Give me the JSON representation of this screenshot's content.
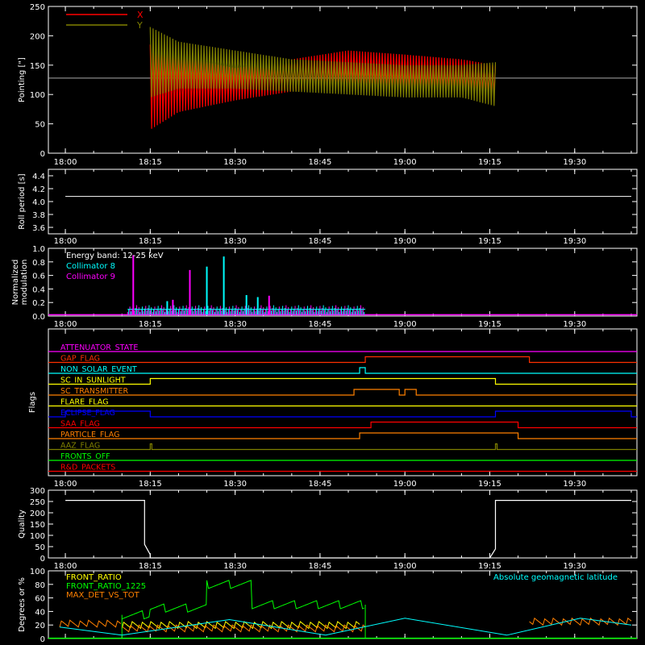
{
  "time_ticks": [
    "18:00",
    "18:15",
    "18:30",
    "18:45",
    "19:00",
    "19:15",
    "19:30"
  ],
  "colors": {
    "x_red": "#ff0000",
    "y_olive": "#808000",
    "cyan": "#00ffff",
    "magenta": "#ff00ff",
    "white": "#ffffff",
    "green": "#00ff00",
    "orange": "#ff8000",
    "yellow": "#ffff00",
    "blue": "#0000ff"
  },
  "chart_data": [
    {
      "type": "line",
      "id": "pointing",
      "ylabel": "Pointing [\"]",
      "ylim": [
        0,
        250
      ],
      "yticks": [
        0,
        50,
        100,
        150,
        200,
        250
      ],
      "xlim": [
        "18:00",
        "19:40"
      ],
      "reference_line": 128,
      "legend": [
        "X",
        "Y"
      ],
      "series": [
        {
          "name": "X",
          "color": "#ff0000",
          "start": "18:15",
          "end": "19:16",
          "envelope_time": [
            "18:15",
            "18:20",
            "18:30",
            "18:40",
            "18:50",
            "19:00",
            "19:10",
            "19:16"
          ],
          "upper": [
            185,
            165,
            145,
            160,
            175,
            168,
            160,
            150
          ],
          "lower": [
            40,
            70,
            90,
            105,
            115,
            110,
            105,
            100
          ]
        },
        {
          "name": "Y",
          "color": "#808000",
          "start": "18:15",
          "end": "19:16",
          "envelope_time": [
            "18:15",
            "18:20",
            "18:30",
            "18:40",
            "18:50",
            "19:00",
            "19:10",
            "19:16"
          ],
          "upper": [
            215,
            190,
            175,
            160,
            155,
            150,
            150,
            155
          ],
          "lower": [
            95,
            110,
            110,
            105,
            100,
            95,
            95,
            80
          ]
        }
      ]
    },
    {
      "type": "line",
      "id": "roll",
      "ylabel": "Roll period [s]",
      "ylim": [
        3.5,
        4.5
      ],
      "yticks": [
        3.6,
        3.8,
        4.0,
        4.2,
        4.4
      ],
      "series": [
        {
          "name": "",
          "color": "#ffffff",
          "value": 4.08,
          "start": "18:00",
          "end": "19:40"
        }
      ]
    },
    {
      "type": "line",
      "id": "modulation",
      "ylabel": "Normalized modulation",
      "ylim": [
        0,
        1.0
      ],
      "yticks": [
        0.0,
        0.2,
        0.4,
        0.6,
        0.8,
        1.0
      ],
      "annotation": "Energy band: 12-25 keV",
      "legend": [
        "Collimator 8",
        "Collimator 9"
      ],
      "range": [
        "18:11",
        "18:53"
      ],
      "spikes": [
        {
          "t": "18:12",
          "v": 0.9,
          "c": 9
        },
        {
          "t": "18:22",
          "v": 0.68,
          "c": 9
        },
        {
          "t": "18:25",
          "v": 0.73,
          "c": 8
        },
        {
          "t": "18:28",
          "v": 0.88,
          "c": 8
        },
        {
          "t": "18:19",
          "v": 0.24,
          "c": 9
        },
        {
          "t": "18:32",
          "v": 0.31,
          "c": 8
        },
        {
          "t": "18:34",
          "v": 0.28,
          "c": 8
        },
        {
          "t": "18:36",
          "v": 0.3,
          "c": 9
        },
        {
          "t": "18:18",
          "v": 0.22,
          "c": 8
        }
      ]
    },
    {
      "type": "table",
      "id": "flags",
      "ylabel": "Flags",
      "rows": [
        {
          "label": "ATTENUATOR_STATE",
          "color": "#ff00ff",
          "on": []
        },
        {
          "label": "GAP_FLAG",
          "color": "#ff3000",
          "on": [
            [
              "18:53",
              "19:22"
            ]
          ]
        },
        {
          "label": "NON_SOLAR_EVENT",
          "color": "#00ffff",
          "on": [
            [
              "18:52",
              "18:53"
            ]
          ]
        },
        {
          "label": "SC_IN_SUNLIGHT",
          "color": "#ffff00",
          "on": [
            [
              "18:15",
              "19:16"
            ]
          ]
        },
        {
          "label": "SC_TRANSMITTER",
          "color": "#ff8000",
          "on": [
            [
              "18:51",
              "18:59"
            ],
            [
              "19:00",
              "19:02"
            ]
          ]
        },
        {
          "label": "FLARE_FLAG",
          "color": "#ffff00",
          "on": []
        },
        {
          "label": "ECLIPSE_FLAG",
          "color": "#0000ff",
          "on": [
            [
              "18:00",
              "18:15"
            ],
            [
              "19:16",
              "19:40"
            ]
          ]
        },
        {
          "label": "SAA_FLAG",
          "color": "#ff0000",
          "on": [
            [
              "18:54",
              "19:20"
            ]
          ]
        },
        {
          "label": "PARTICLE_FLAG",
          "color": "#ff8000",
          "on": [
            [
              "18:52",
              "19:20"
            ]
          ]
        },
        {
          "label": "AAZ_FLAG",
          "color": "#808000",
          "on": [
            [
              "18:15",
              "18:15"
            ],
            [
              "19:16",
              "19:16"
            ]
          ]
        },
        {
          "label": "FRONTS_OFF",
          "color": "#00ff00",
          "on": []
        },
        {
          "label": "R&D_PACKETS",
          "color": "#ff0000",
          "on": []
        }
      ]
    },
    {
      "type": "line",
      "id": "quality",
      "ylabel": "Quality",
      "ylim": [
        0,
        300
      ],
      "yticks": [
        0,
        50,
        100,
        150,
        200,
        250,
        300
      ],
      "series": [
        {
          "name": "",
          "color": "#ffffff",
          "x": [
            "18:00",
            "18:14",
            "18:14",
            "18:15",
            "18:15",
            "19:15",
            "19:16",
            "19:16",
            "19:40"
          ],
          "y": [
            255,
            255,
            60,
            15,
            0,
            0,
            40,
            255,
            255
          ]
        }
      ]
    },
    {
      "type": "line",
      "id": "ratios",
      "ylabel": "Degrees or %",
      "ylim": [
        0,
        100
      ],
      "yticks": [
        0,
        20,
        40,
        60,
        80,
        100
      ],
      "legend": [
        "FRONT_RATIO",
        "FRONT_RATIO_1225",
        "MAX_DET_VS_TOT"
      ],
      "annotation_right": "Absolute geomagnetic latitude",
      "series": [
        {
          "name": "FRONT_RATIO",
          "color": "#ffff00",
          "segments": [
            [
              "18:10",
              "18:52",
              20
            ]
          ]
        },
        {
          "name": "FRONT_RATIO_1225",
          "color": "#00ff00",
          "steps": [
            [
              "18:10",
              "18:15",
              35
            ],
            [
              "18:15",
              "18:25",
              45
            ],
            [
              "18:25",
              "18:33",
              80
            ],
            [
              "18:33",
              "18:53",
              50
            ]
          ]
        },
        {
          "name": "MAX_DET_VS_TOT",
          "color": "#ff8000",
          "segments": [
            [
              "17:59",
              "18:10",
              22
            ],
            [
              "18:10",
              "18:53",
              15
            ],
            [
              "19:22",
              "19:40",
              25
            ]
          ]
        },
        {
          "name": "Absolute geomagnetic latitude",
          "color": "#00ffff",
          "x": [
            "17:59",
            "18:10",
            "18:29",
            "18:46",
            "19:00",
            "19:18",
            "19:31",
            "19:40"
          ],
          "y": [
            17,
            5,
            28,
            5,
            30,
            5,
            30,
            20
          ]
        }
      ]
    }
  ]
}
